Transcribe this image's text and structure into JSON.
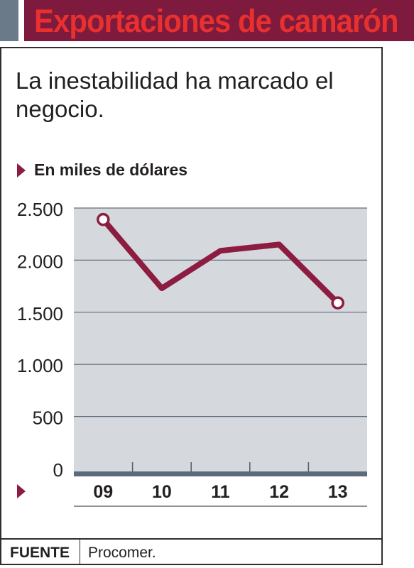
{
  "title": "Exportaciones de camarón",
  "headline": "La inestabilidad ha marcado el negocio.",
  "unit_label": "En miles de dólares",
  "source": {
    "label": "FUENTE",
    "value": "Procomer."
  },
  "colors": {
    "title_bar": "#7e1a3e",
    "title_text": "#e8302e",
    "accent_block": "#6b7a89",
    "line": "#8c1d40",
    "plot_background": "#d5d8dd",
    "gridline": "#5f6f7f",
    "axis_bar": "#5c6b7a"
  },
  "chart_data": {
    "type": "line",
    "categories": [
      "09",
      "10",
      "11",
      "12",
      "13"
    ],
    "values": [
      2390,
      1730,
      2090,
      2150,
      1590
    ],
    "ylim": [
      0,
      2500
    ],
    "y_ticks": [
      0,
      500,
      1000,
      1500,
      2000,
      2500
    ],
    "y_tick_labels": [
      "0",
      "500",
      "1.000",
      "1.500",
      "2.000",
      "2.500"
    ],
    "x_tick_labels": [
      "09",
      "10",
      "11",
      "12",
      "13"
    ],
    "endpoint_markers": true,
    "grid": true,
    "xlabel": "",
    "ylabel": ""
  }
}
